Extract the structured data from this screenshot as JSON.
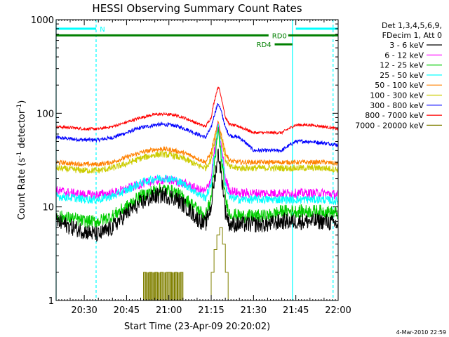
{
  "chart_data": {
    "type": "line",
    "title": "HESSI Observing Summary Count Rates",
    "xlabel": "Start Time (23-Apr-09 20:20:02)",
    "ylabel": "Count Rate (s",
    "ylabel_sup1": "-1",
    "ylabel_mid": " detector",
    "ylabel_sup2": "-1",
    "ylabel_end": ")",
    "x_unit": "minutes of day",
    "xlim": [
      1220.03,
      1320
    ],
    "ylim": [
      1,
      1000
    ],
    "y_scale": "log",
    "x_ticks": [
      {
        "value": 1230,
        "label": "20:30"
      },
      {
        "value": 1245,
        "label": "20:45"
      },
      {
        "value": 1260,
        "label": "21:00"
      },
      {
        "value": 1275,
        "label": "21:15"
      },
      {
        "value": 1290,
        "label": "21:30"
      },
      {
        "value": 1305,
        "label": "21:45"
      },
      {
        "value": 1320,
        "label": "22:00"
      }
    ],
    "y_ticks": [
      {
        "value": 1,
        "label": "1"
      },
      {
        "value": 10,
        "label": "10"
      },
      {
        "value": 100,
        "label": "100"
      },
      {
        "value": 1000,
        "label": "1000"
      }
    ],
    "legend_placement": "right",
    "legend_header": [
      "Det 1,3,4,5,6,9,",
      "FDecim 1, Att 0"
    ],
    "series": [
      {
        "name": "3 - 6 keV",
        "color": "#000000",
        "x": [
          1220.03,
          1226,
          1230,
          1235,
          1240,
          1245,
          1250,
          1255,
          1258,
          1262,
          1266,
          1270,
          1273,
          1275,
          1276.5,
          1277.5,
          1278.5,
          1280,
          1281.5,
          1285,
          1290,
          1295,
          1300,
          1305,
          1310,
          1315,
          1320
        ],
        "y": [
          7,
          6,
          5.5,
          5,
          6,
          8.5,
          11,
          13,
          13.5,
          12.5,
          10,
          7.5,
          6.5,
          10,
          22,
          38,
          22,
          9,
          6.5,
          6.5,
          6.5,
          6.5,
          7,
          7,
          7,
          7,
          6.5
        ]
      },
      {
        "name": "6 - 12 keV",
        "color": "#ff00ff",
        "x": [
          1220.03,
          1226,
          1230,
          1235,
          1240,
          1245,
          1250,
          1255,
          1258,
          1262,
          1266,
          1270,
          1273,
          1275,
          1276.5,
          1277.5,
          1278.5,
          1280,
          1281.5,
          1285,
          1290,
          1295,
          1300,
          1305,
          1310,
          1315,
          1320
        ],
        "y": [
          15,
          14,
          13.5,
          13.5,
          14,
          15.5,
          17.5,
          19,
          19.5,
          19,
          17.5,
          15.5,
          14.5,
          20,
          45,
          75,
          45,
          20,
          15,
          14,
          14,
          14,
          14,
          14,
          14,
          14,
          13.5
        ]
      },
      {
        "name": "12 - 25 keV",
        "color": "#00cc00",
        "x": [
          1220.03,
          1226,
          1230,
          1235,
          1240,
          1245,
          1250,
          1255,
          1258,
          1262,
          1266,
          1270,
          1273,
          1275,
          1276.5,
          1277.5,
          1278.5,
          1280,
          1281.5,
          1285,
          1290,
          1295,
          1300,
          1305,
          1310,
          1315,
          1320
        ],
        "y": [
          8,
          7.5,
          7,
          7,
          8,
          10,
          13,
          15,
          15.5,
          14.5,
          12,
          9.5,
          8,
          12,
          32,
          65,
          32,
          12,
          8.5,
          8,
          8,
          8,
          9,
          9,
          9,
          9,
          8.5
        ]
      },
      {
        "name": "25 - 50 keV",
        "color": "#00ffff",
        "x": [
          1220.03,
          1226,
          1230,
          1235,
          1240,
          1245,
          1250,
          1255,
          1258,
          1262,
          1266,
          1270,
          1273,
          1275,
          1276.5,
          1277.5,
          1278.5,
          1280,
          1281.5,
          1285,
          1290,
          1295,
          1300,
          1305,
          1310,
          1315,
          1320
        ],
        "y": [
          13,
          12.5,
          12,
          12,
          13,
          15,
          18,
          20,
          20.5,
          19.5,
          17,
          14,
          12.5,
          17,
          40,
          72,
          40,
          17,
          12.5,
          12,
          12,
          12,
          12,
          12,
          12,
          12,
          11.5
        ]
      },
      {
        "name": "50 - 100 keV",
        "color": "#ff8000",
        "x": [
          1220.03,
          1226,
          1230,
          1235,
          1240,
          1245,
          1250,
          1255,
          1258,
          1262,
          1266,
          1270,
          1273,
          1275,
          1276.5,
          1277.5,
          1278.5,
          1280,
          1281.5,
          1285,
          1290,
          1295,
          1300,
          1305,
          1310,
          1315,
          1320
        ],
        "y": [
          30,
          29,
          28.5,
          28.5,
          30,
          34,
          38,
          41,
          41.5,
          40,
          37,
          33,
          30,
          38,
          60,
          80,
          60,
          38,
          31,
          30,
          30,
          30,
          30,
          30,
          30,
          30,
          29
        ]
      },
      {
        "name": "100 - 300 keV",
        "color": "#cccc00",
        "x": [
          1220.03,
          1226,
          1230,
          1235,
          1240,
          1245,
          1250,
          1255,
          1258,
          1262,
          1266,
          1270,
          1273,
          1275,
          1276.5,
          1277.5,
          1278.5,
          1280,
          1281.5,
          1285,
          1290,
          1295,
          1300,
          1305,
          1310,
          1315,
          1320
        ],
        "y": [
          26,
          25,
          24.5,
          24.5,
          26,
          29,
          33,
          36,
          36.5,
          35,
          32,
          28,
          26,
          32,
          55,
          78,
          55,
          32,
          26.5,
          26,
          26,
          26,
          26,
          26,
          26,
          26,
          25
        ]
      },
      {
        "name": "300 - 800 keV",
        "color": "#0000ff",
        "x": [
          1220.03,
          1226,
          1230,
          1235,
          1240,
          1245,
          1250,
          1255,
          1258,
          1262,
          1266,
          1270,
          1273,
          1275,
          1276.5,
          1277.5,
          1278.5,
          1280,
          1281.5,
          1285,
          1290,
          1295,
          1300,
          1305,
          1310,
          1315,
          1320
        ],
        "y": [
          55,
          53,
          52,
          52,
          55,
          62,
          70,
          75,
          76,
          74,
          68,
          60,
          55,
          70,
          105,
          128,
          105,
          70,
          58,
          55,
          40,
          40,
          40,
          50,
          50,
          48,
          46
        ]
      },
      {
        "name": "800 - 7000 keV",
        "color": "#ff0000",
        "x": [
          1220.03,
          1226,
          1230,
          1235,
          1240,
          1245,
          1250,
          1255,
          1258,
          1262,
          1266,
          1270,
          1273,
          1275,
          1276.5,
          1277.5,
          1278.5,
          1280,
          1281.5,
          1285,
          1290,
          1295,
          1300,
          1305,
          1310,
          1315,
          1320
        ],
        "y": [
          72,
          70,
          68,
          68,
          72,
          80,
          90,
          97,
          98,
          96,
          88,
          78,
          72,
          90,
          150,
          195,
          150,
          90,
          76,
          72,
          62,
          62,
          62,
          75,
          75,
          72,
          68
        ]
      },
      {
        "name": "7000 - 20000 keV",
        "color": "#808000",
        "x": [
          1220.03,
          1245,
          1250,
          1251,
          1252,
          1253,
          1254,
          1255,
          1256,
          1257,
          1258,
          1259,
          1261,
          1262,
          1263,
          1264,
          1265,
          1266,
          1270,
          1274,
          1275,
          1276,
          1277,
          1278,
          1279,
          1280,
          1281,
          1282,
          1320
        ],
        "y": [
          1,
          1,
          1,
          2,
          1,
          2,
          1,
          2,
          1,
          2,
          1,
          2,
          1,
          2,
          1,
          2,
          1,
          1,
          1,
          1,
          2,
          3.5,
          5,
          6,
          4,
          2,
          1,
          1,
          1
        ]
      }
    ],
    "annotations": [
      {
        "text": "N",
        "color": "#00ffff"
      },
      {
        "text": "RD0",
        "color": "#008000"
      },
      {
        "text": "RD4",
        "color": "#008000"
      }
    ],
    "flag_bars": [
      {
        "label_ref": 0,
        "x_start": 1220.03,
        "x_end": 1234.2,
        "y": 800,
        "color": "#00ffff"
      },
      {
        "label_ref": 0,
        "x_start": 1305,
        "x_end": 1320,
        "y": 800,
        "color": "#00ffff"
      },
      {
        "label_ref": 1,
        "x_start": 1220.03,
        "x_end": 1320,
        "y": 680,
        "color": "#008000"
      },
      {
        "label_ref": 2,
        "x_start": 1297.5,
        "x_end": 1303.8,
        "y": 545,
        "color": "#008000"
      }
    ],
    "vlines": [
      {
        "x": 1220.03,
        "color": "#00ffff",
        "dashed": false
      },
      {
        "x": 1234.2,
        "color": "#00ffff",
        "dashed": true
      },
      {
        "x": 1303.8,
        "color": "#00ffff",
        "dashed": false
      },
      {
        "x": 1318.2,
        "color": "#00ffff",
        "dashed": true
      }
    ],
    "grid": false
  },
  "footer_timestamp": "4-Mar-2010 22:59"
}
